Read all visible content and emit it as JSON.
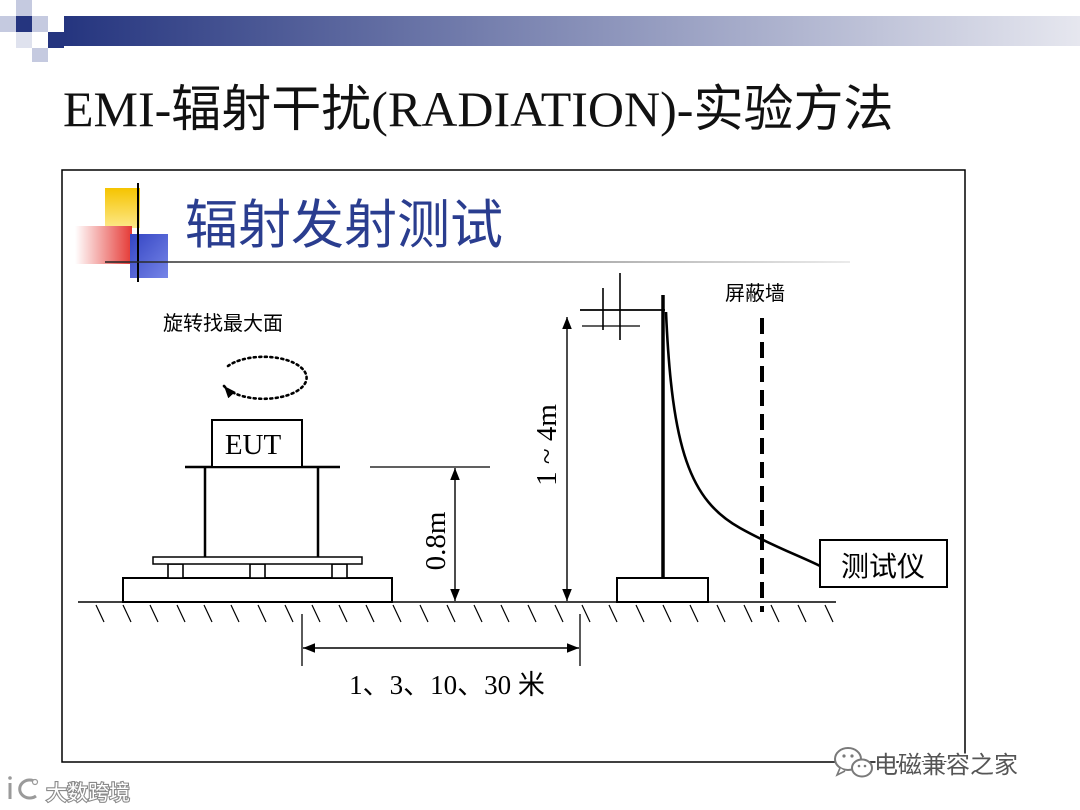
{
  "slide": {
    "title": "EMI-辐射干扰(RADIATION)-实验方法"
  },
  "panel": {
    "heading": "辐射发射测试"
  },
  "diagram": {
    "rotate_label": "旋转找最大面",
    "eut_label": "EUT",
    "table_height_label": "0.8m",
    "antenna_height_label": "1 ~ 4m",
    "shield_wall_label": "屏蔽墙",
    "instrument_label": "测试仪",
    "distance_label": "1、3、10、30 米"
  },
  "watermarks": {
    "right_text": "电磁兼容之家",
    "right_icon": "wechat-icon",
    "left_text": "大数跨境",
    "left_icon": "brand-logo-icon"
  },
  "colors": {
    "title_bar_start": "#25357f",
    "title_bar_end": "#e6e7ef",
    "pattern_dark": "#25357f",
    "pattern_light": "#c5cae0",
    "heading": "#2a3d8f",
    "accent_yellow": "#f5c400",
    "accent_red": "#e53935",
    "accent_blue": "#3344c2",
    "line": "#000000"
  }
}
